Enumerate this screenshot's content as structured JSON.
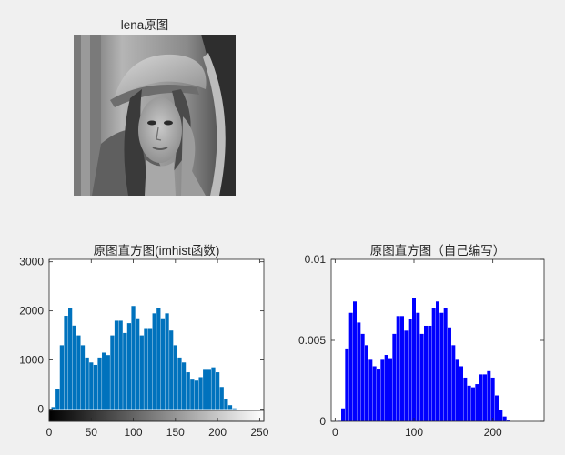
{
  "figure": {
    "background": "#f0f0f0",
    "image_title": "lena原图",
    "image_description_icon": "lena-grayscale-photo-icon"
  },
  "chart_data": [
    {
      "type": "bar",
      "title": "原图直方图(imhist函数)",
      "xlabel": "",
      "ylabel": "",
      "xlim": [
        0,
        255
      ],
      "ylim": [
        -250,
        3050
      ],
      "xticks": [
        0,
        50,
        100,
        150,
        200,
        250
      ],
      "yticks": [
        0,
        1000,
        2000,
        3000
      ],
      "bar_color": "#0072bd",
      "colorbar": "grayscale 0-255 gradient beneath the x axis",
      "grid": false,
      "legend": "none",
      "x": [
        0,
        5,
        10,
        15,
        20,
        25,
        30,
        35,
        40,
        45,
        50,
        55,
        60,
        65,
        70,
        75,
        80,
        85,
        90,
        95,
        100,
        105,
        110,
        115,
        120,
        125,
        130,
        135,
        140,
        145,
        150,
        155,
        160,
        165,
        170,
        175,
        180,
        185,
        190,
        195,
        200,
        205,
        210,
        215,
        220,
        225,
        230,
        235,
        240,
        245,
        250,
        255
      ],
      "values": [
        0,
        40,
        400,
        1300,
        1900,
        2050,
        1700,
        1500,
        1300,
        1050,
        950,
        900,
        1050,
        1150,
        1100,
        1500,
        1800,
        1800,
        1550,
        1750,
        2100,
        1850,
        1500,
        1650,
        1650,
        1950,
        2050,
        1850,
        1950,
        1600,
        1300,
        1050,
        950,
        750,
        600,
        580,
        650,
        800,
        800,
        850,
        750,
        450,
        200,
        80,
        15,
        0,
        0,
        0,
        0,
        0,
        0,
        0
      ]
    },
    {
      "type": "bar",
      "title": "原图直方图（自己编写）",
      "xlabel": "",
      "ylabel": "",
      "xlim": [
        -5,
        265
      ],
      "ylim": [
        0,
        0.01
      ],
      "xticks": [
        0,
        100,
        200
      ],
      "yticks": [
        0,
        0.005,
        0.01
      ],
      "ytick_labels": [
        "0",
        "0.005",
        "0.01"
      ],
      "bar_color": "#0000ff",
      "grid": false,
      "legend": "none",
      "x": [
        0,
        5,
        10,
        15,
        20,
        25,
        30,
        35,
        40,
        45,
        50,
        55,
        60,
        65,
        70,
        75,
        80,
        85,
        90,
        95,
        100,
        105,
        110,
        115,
        120,
        125,
        130,
        135,
        140,
        145,
        150,
        155,
        160,
        165,
        170,
        175,
        180,
        185,
        190,
        195,
        200,
        205,
        210,
        215,
        220,
        225,
        230,
        235,
        240,
        245,
        250,
        255
      ],
      "values": [
        0,
        3e-05,
        0.0008,
        0.0045,
        0.0067,
        0.0074,
        0.0061,
        0.0054,
        0.0047,
        0.0038,
        0.0034,
        0.0032,
        0.0038,
        0.0041,
        0.0039,
        0.0054,
        0.0065,
        0.0065,
        0.0056,
        0.0063,
        0.0076,
        0.0067,
        0.0054,
        0.0059,
        0.0059,
        0.007,
        0.0074,
        0.0067,
        0.007,
        0.0058,
        0.0047,
        0.0038,
        0.0034,
        0.0027,
        0.0022,
        0.0021,
        0.0023,
        0.0029,
        0.0029,
        0.0031,
        0.0027,
        0.0016,
        0.0007,
        0.0003,
        5e-05,
        0,
        0,
        0,
        0,
        0,
        0,
        0
      ]
    }
  ]
}
